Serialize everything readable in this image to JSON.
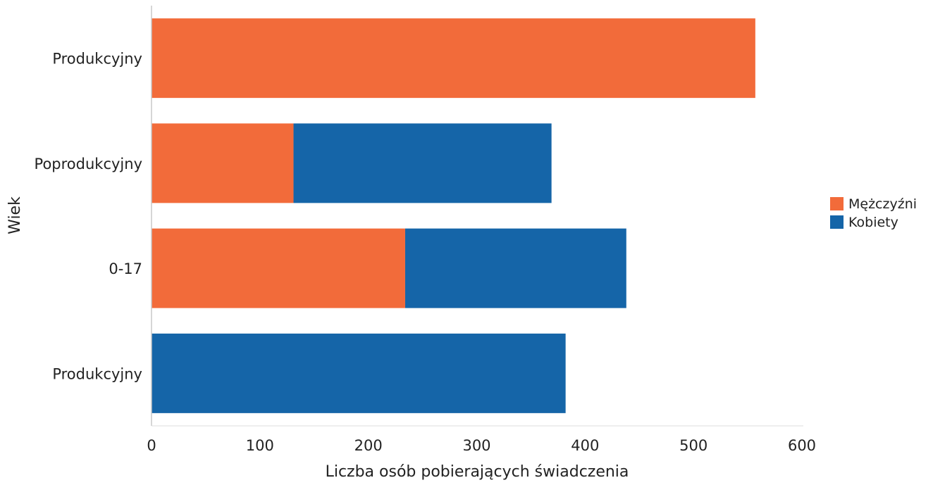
{
  "chart_data": {
    "type": "bar",
    "orientation": "horizontal",
    "stacked": true,
    "categories": [
      "Produkcyjny",
      "Poprodukcyjny",
      "0-17",
      "Produkcyjny"
    ],
    "series": [
      {
        "name": "Mężczyźni",
        "color": "#f26b3a",
        "values": [
          557,
          131,
          234,
          0
        ]
      },
      {
        "name": "Kobiety",
        "color": "#1565a8",
        "values": [
          0,
          238,
          204,
          382
        ]
      }
    ],
    "xlabel": "Liczba osób pobierających świadczenia",
    "ylabel": "Wiek",
    "xlim": [
      0,
      600
    ],
    "xticks": [
      "0",
      "100",
      "200",
      "300",
      "400",
      "500",
      "600"
    ],
    "grid": false,
    "legend_position": "right"
  }
}
